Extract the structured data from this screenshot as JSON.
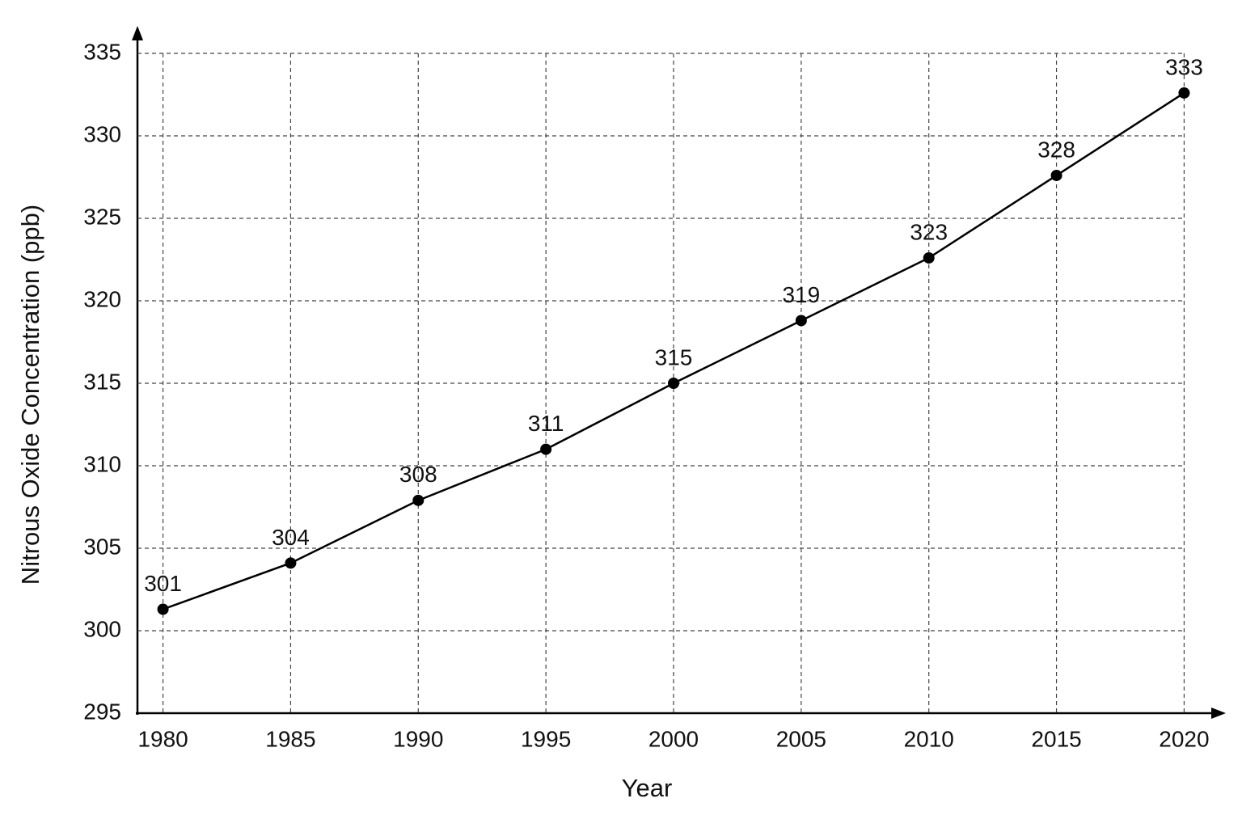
{
  "chart_data": {
    "type": "line",
    "x_label": "Year",
    "y_label": "Nitrous Oxide Concentration (ppb)",
    "x": [
      1980,
      1985,
      1990,
      1995,
      2000,
      2005,
      2010,
      2015,
      2020
    ],
    "series": [
      {
        "color": "#000000",
        "values": [
          301.3,
          304.1,
          307.9,
          311.0,
          315.0,
          318.8,
          322.6,
          327.6,
          332.6
        ],
        "value_labels": [
          "301",
          "304",
          "308",
          "311",
          "315",
          "319",
          "323",
          "328",
          "333"
        ]
      }
    ],
    "xlim": [
      1979,
      2021
    ],
    "xticks": [
      1980,
      1985,
      1990,
      1995,
      2000,
      2005,
      2010,
      2015,
      2020
    ],
    "ylim": [
      295,
      335
    ],
    "yticks": [
      295,
      300,
      305,
      310,
      315,
      320,
      325,
      330,
      335
    ],
    "grid": true
  }
}
